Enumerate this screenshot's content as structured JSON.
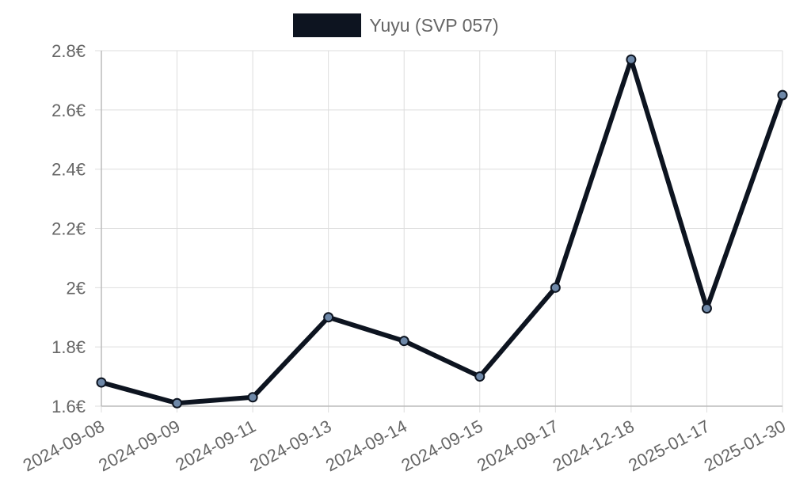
{
  "legend": {
    "label": "Yuyu (SVP 057)"
  },
  "colors": {
    "line": "#0d1420",
    "point_fill": "#6e88a8",
    "grid": "#dddddd",
    "axis": "#bbbbbb",
    "tick_text": "#666666"
  },
  "chart_data": {
    "type": "line",
    "title": "",
    "xlabel": "",
    "ylabel": "",
    "categories": [
      "2024-09-08",
      "2024-09-09",
      "2024-09-11",
      "2024-09-13",
      "2024-09-14",
      "2024-09-15",
      "2024-09-17",
      "2024-12-18",
      "2025-01-17",
      "2025-01-30"
    ],
    "series": [
      {
        "name": "Yuyu (SVP 057)",
        "values": [
          1.68,
          1.61,
          1.63,
          1.9,
          1.82,
          1.7,
          2.0,
          2.77,
          1.93,
          2.65
        ]
      }
    ],
    "ylim": [
      1.6,
      2.8
    ],
    "yticks": [
      1.6,
      1.8,
      2.0,
      2.2,
      2.4,
      2.6,
      2.8
    ],
    "ytick_labels": [
      "1.6€",
      "1.8€",
      "2€",
      "2.2€",
      "2.4€",
      "2.6€",
      "2.8€"
    ],
    "grid": true,
    "legend_position": "top"
  }
}
